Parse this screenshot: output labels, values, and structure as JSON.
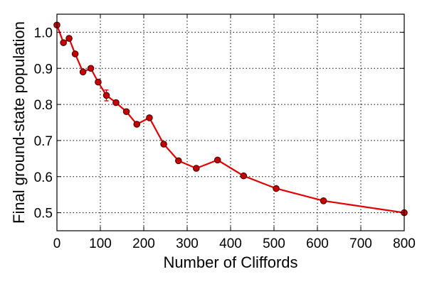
{
  "chart_data": {
    "type": "line",
    "title": "",
    "xlabel": "Number of Cliffords",
    "ylabel": "Final ground-state population",
    "xlim": [
      0,
      800
    ],
    "ylim": [
      0.45,
      1.05
    ],
    "xticks": [
      0,
      100,
      200,
      300,
      400,
      500,
      600,
      700,
      800
    ],
    "yticks": [
      0.5,
      0.6,
      0.7,
      0.8,
      0.9,
      1.0
    ],
    "xtick_labels": [
      "0",
      "100",
      "200",
      "300",
      "400",
      "500",
      "600",
      "700",
      "800"
    ],
    "ytick_labels": [
      "0.5",
      "0.6",
      "0.7",
      "0.8",
      "0.9",
      "1.0"
    ],
    "grid": true,
    "line_color": "#e10000",
    "marker_color": "#c40000",
    "series": [
      {
        "x": [
          0,
          15,
          28,
          42,
          60,
          78,
          95,
          114,
          136,
          160,
          184,
          213,
          246,
          280,
          321,
          370,
          430,
          505,
          614,
          800
        ],
        "y": [
          1.02,
          0.971,
          0.983,
          0.94,
          0.89,
          0.9,
          0.862,
          0.825,
          0.805,
          0.78,
          0.745,
          0.763,
          0.69,
          0.644,
          0.623,
          0.646,
          0.602,
          0.567,
          0.533,
          0.5
        ],
        "yerr": [
          0,
          0,
          0,
          0,
          0,
          0,
          0,
          0.015,
          0,
          0,
          0,
          0,
          0,
          0,
          0,
          0,
          0,
          0,
          0,
          0
        ]
      }
    ]
  }
}
